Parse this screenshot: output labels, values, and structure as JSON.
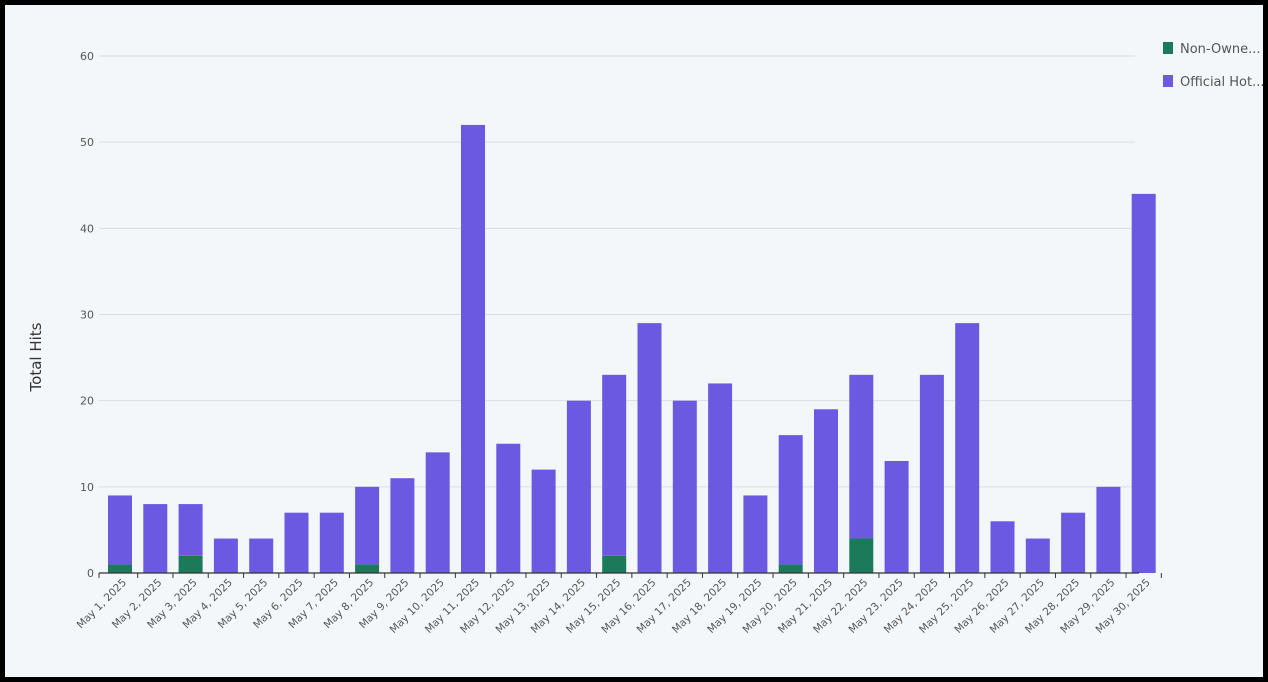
{
  "colors": {
    "background": "#f3f7fa",
    "border": "#000000",
    "grid": "#d9dee6",
    "axis": "#333333",
    "text": "#555555"
  },
  "chart_data": {
    "type": "bar",
    "stacked": true,
    "ylabel": "Total Hits",
    "xlabel": "",
    "ylim": [
      0,
      60
    ],
    "yticks": [
      0,
      10,
      20,
      30,
      40,
      50,
      60
    ],
    "grid": true,
    "legend_position": "top-right",
    "categories": [
      "May 1, 2025",
      "May 2, 2025",
      "May 3, 2025",
      "May 4, 2025",
      "May 5, 2025",
      "May 6, 2025",
      "May 7, 2025",
      "May 8, 2025",
      "May 9, 2025",
      "May 10, 2025",
      "May 11, 2025",
      "May 12, 2025",
      "May 13, 2025",
      "May 14, 2025",
      "May 15, 2025",
      "May 16, 2025",
      "May 17, 2025",
      "May 18, 2025",
      "May 19, 2025",
      "May 20, 2025",
      "May 21, 2025",
      "May 22, 2025",
      "May 23, 2025",
      "May 24, 2025",
      "May 25, 2025",
      "May 26, 2025",
      "May 27, 2025",
      "May 28, 2025",
      "May 29, 2025",
      "May 30, 2025"
    ],
    "series": [
      {
        "name": "Non-Owne...",
        "color": "#1a7a5a",
        "values": [
          1,
          0,
          2,
          0,
          0,
          0,
          0,
          1,
          0,
          0,
          0,
          0,
          0,
          0,
          2,
          0,
          0,
          0,
          0,
          1,
          0,
          4,
          0,
          0,
          0,
          0,
          0,
          0,
          0,
          0
        ]
      },
      {
        "name": "Official Hot...",
        "color": "#6b5ae1",
        "values": [
          8,
          8,
          6,
          4,
          4,
          7,
          7,
          9,
          11,
          14,
          52,
          15,
          12,
          20,
          21,
          29,
          20,
          22,
          9,
          15,
          19,
          19,
          13,
          23,
          29,
          6,
          4,
          7,
          10,
          44
        ]
      }
    ]
  }
}
